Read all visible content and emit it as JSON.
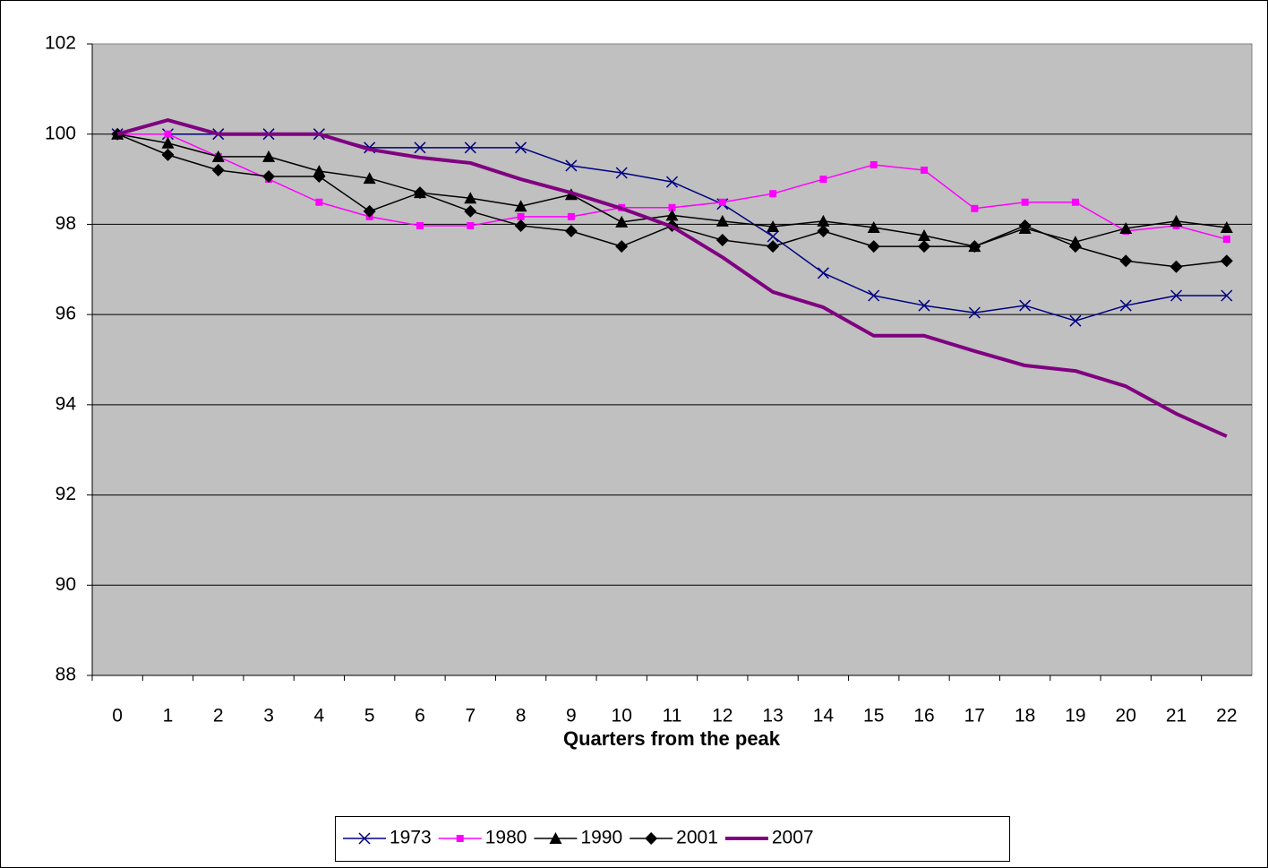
{
  "chart_data": {
    "type": "line",
    "x_label": "Quarters from the peak",
    "categories": [
      "0",
      "1",
      "2",
      "3",
      "4",
      "5",
      "6",
      "7",
      "8",
      "9",
      "10",
      "11",
      "12",
      "13",
      "14",
      "15",
      "16",
      "17",
      "18",
      "19",
      "20",
      "21",
      "22"
    ],
    "series": [
      {
        "name": "1973",
        "color": "#000080",
        "marker": "x",
        "width": 1.5,
        "values": [
          100,
          100,
          100,
          100,
          100,
          99.7,
          99.7,
          99.7,
          99.7,
          99.3,
          99.14,
          98.94,
          98.45,
          97.73,
          96.92,
          96.42,
          96.2,
          96.04,
          96.2,
          95.86,
          96.2,
          96.42,
          96.42
        ]
      },
      {
        "name": "1980",
        "color": "#ff00ff",
        "marker": "square",
        "width": 1.5,
        "values": [
          100,
          100,
          99.5,
          99.0,
          98.49,
          98.17,
          97.97,
          97.97,
          98.17,
          98.17,
          98.37,
          98.37,
          98.49,
          98.68,
          99.0,
          99.32,
          99.2,
          98.35,
          98.49,
          98.49,
          97.85,
          97.97,
          97.67
        ]
      },
      {
        "name": "1990",
        "color": "#000000",
        "marker": "triangle",
        "width": 1.5,
        "values": [
          100,
          99.8,
          99.5,
          99.5,
          99.18,
          99.02,
          98.7,
          98.58,
          98.4,
          98.66,
          98.05,
          98.2,
          98.07,
          97.95,
          98.07,
          97.93,
          97.75,
          97.51,
          97.91,
          97.61,
          97.91,
          98.07,
          97.93
        ]
      },
      {
        "name": "2001",
        "color": "#000000",
        "marker": "diamond",
        "width": 1.5,
        "values": [
          100,
          99.54,
          99.2,
          99.06,
          99.06,
          98.29,
          98.7,
          98.29,
          97.97,
          97.85,
          97.51,
          97.97,
          97.65,
          97.51,
          97.85,
          97.51,
          97.51,
          97.51,
          97.97,
          97.51,
          97.19,
          97.06,
          97.19
        ]
      },
      {
        "name": "2007",
        "color": "#800080",
        "marker": "none",
        "width": 4,
        "values": [
          100,
          100.31,
          100,
          100,
          100,
          99.66,
          99.48,
          99.36,
          99.0,
          98.7,
          98.35,
          97.95,
          97.27,
          96.5,
          96.16,
          95.53,
          95.53,
          95.19,
          94.87,
          94.75,
          94.41,
          93.8,
          93.3
        ]
      }
    ],
    "ylim": [
      88,
      102
    ],
    "yticks": [
      88,
      90,
      92,
      94,
      96,
      98,
      100,
      102
    ],
    "grid": true
  }
}
